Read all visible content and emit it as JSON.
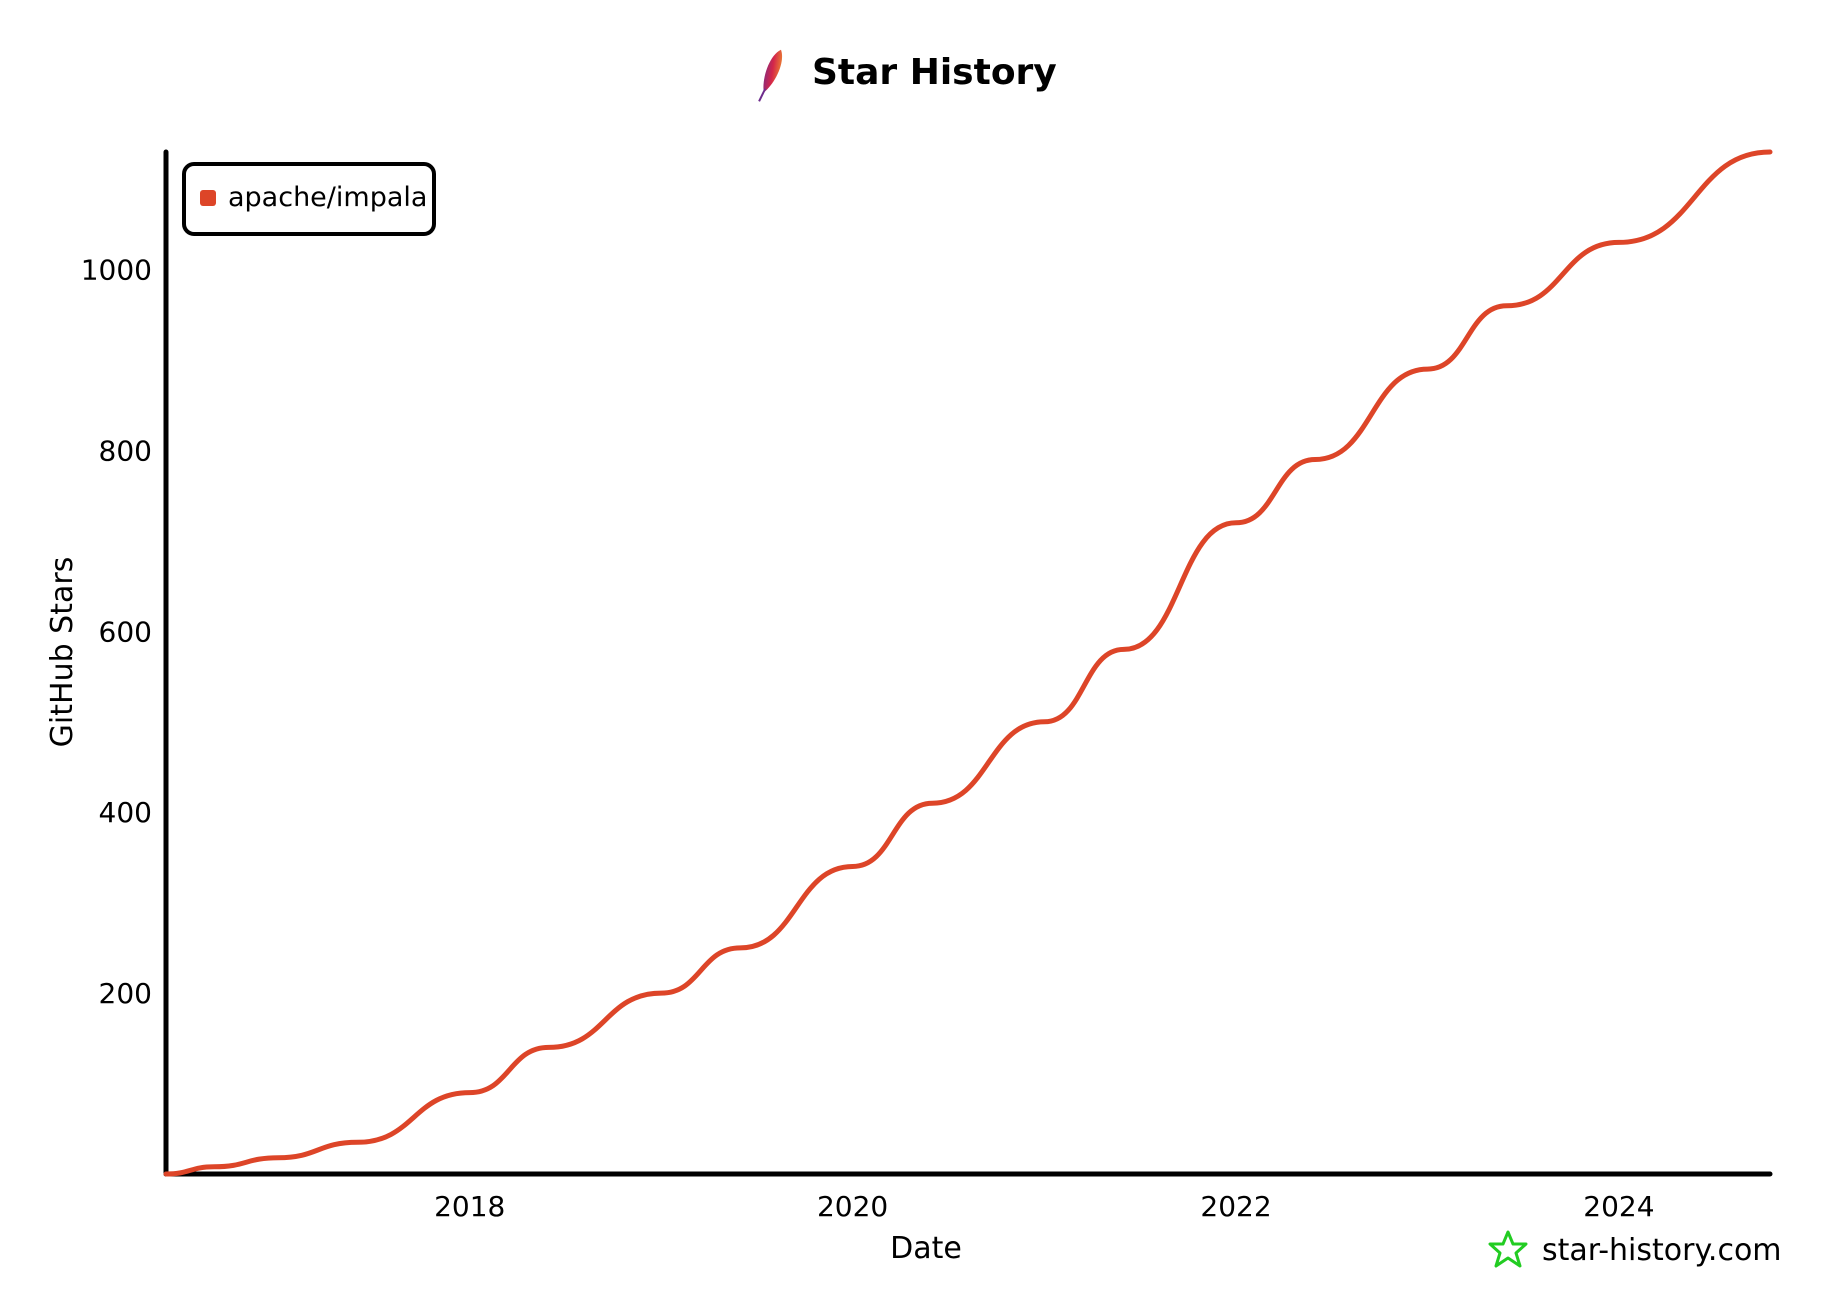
{
  "chart_data": {
    "type": "line",
    "title": "Star History",
    "xlabel": "Date",
    "ylabel": "GitHub Stars",
    "x_ticks": [
      "2018",
      "2020",
      "2022",
      "2024"
    ],
    "y_ticks": [
      200,
      400,
      600,
      800,
      1000
    ],
    "xlim": [
      "2016-06-01",
      "2024-10-15"
    ],
    "ylim": [
      0,
      1130
    ],
    "grid": false,
    "legend_position": "top-left",
    "series": [
      {
        "name": "apache/impala",
        "color": "#dd4528",
        "points": [
          [
            "2016-06-01",
            0
          ],
          [
            "2016-09-01",
            8
          ],
          [
            "2017-01-01",
            18
          ],
          [
            "2017-06-01",
            35
          ],
          [
            "2018-01-01",
            90
          ],
          [
            "2018-06-01",
            140
          ],
          [
            "2019-01-01",
            200
          ],
          [
            "2019-06-01",
            250
          ],
          [
            "2020-01-01",
            340
          ],
          [
            "2020-06-01",
            410
          ],
          [
            "2021-01-01",
            500
          ],
          [
            "2021-06-01",
            580
          ],
          [
            "2022-01-01",
            720
          ],
          [
            "2022-06-01",
            790
          ],
          [
            "2023-01-01",
            890
          ],
          [
            "2023-06-01",
            960
          ],
          [
            "2024-01-01",
            1030
          ],
          [
            "2024-10-15",
            1130
          ]
        ]
      }
    ]
  },
  "watermark": {
    "text": "star-history.com",
    "icon": "star-icon",
    "icon_color": "#22cc22"
  },
  "title_icon": "apache-feather-icon"
}
